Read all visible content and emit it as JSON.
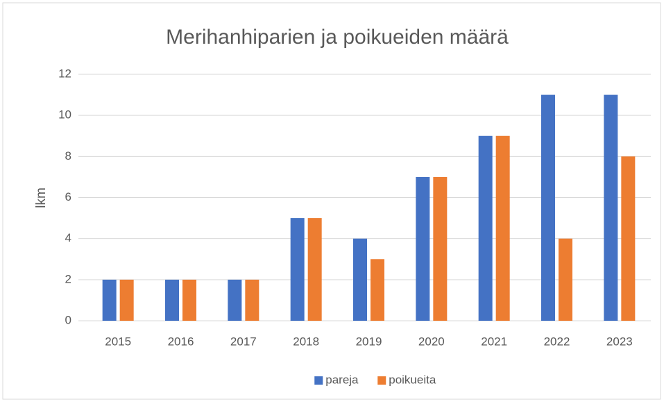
{
  "chart_data": {
    "type": "bar",
    "title": "Merihanhiparien ja poikueiden määrä",
    "y_label": "lkm",
    "categories": [
      "2015",
      "2016",
      "2017",
      "2018",
      "2019",
      "2020",
      "2021",
      "2022",
      "2023"
    ],
    "series": [
      {
        "name": "pareja",
        "color": "#4472c4",
        "values": [
          2,
          2,
          2,
          5,
          4,
          7,
          9,
          11,
          11
        ]
      },
      {
        "name": "poikueita",
        "color": "#ed7d31",
        "values": [
          2,
          2,
          2,
          5,
          3,
          7,
          9,
          4,
          8
        ]
      }
    ],
    "ylim": [
      0,
      12
    ],
    "yticks": [
      0,
      2,
      4,
      6,
      8,
      10,
      12
    ],
    "grid": true,
    "legend": "bottom"
  }
}
